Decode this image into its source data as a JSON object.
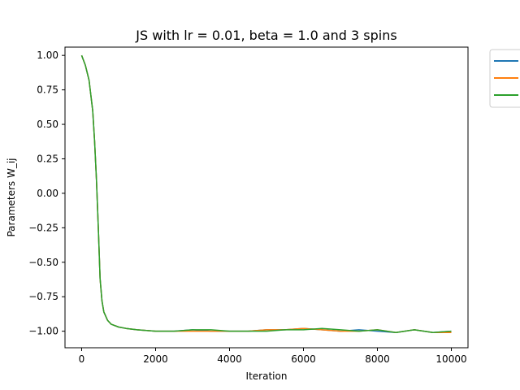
{
  "chart_data": {
    "type": "line",
    "title": "JS with lr = 0.01, beta = 1.0 and 3 spins",
    "xlabel": "Iteration",
    "ylabel": "Parameters W_ij",
    "xlim": [
      -450,
      10450
    ],
    "ylim": [
      -1.12,
      1.06
    ],
    "xticks": [
      0,
      2000,
      4000,
      6000,
      8000,
      10000
    ],
    "xtick_labels": [
      "0",
      "2000",
      "4000",
      "6000",
      "8000",
      "10000"
    ],
    "yticks": [
      1.0,
      0.75,
      0.5,
      0.25,
      0.0,
      -0.25,
      -0.5,
      -0.75,
      -1.0
    ],
    "ytick_labels": [
      "1.00",
      "0.75",
      "0.50",
      "0.25",
      "0.00",
      "−0.25",
      "−0.50",
      "−0.75",
      "−1.00"
    ],
    "grid": false,
    "legend": "outside-top-right",
    "x": [
      0,
      100,
      200,
      300,
      350,
      400,
      450,
      500,
      550,
      600,
      700,
      800,
      1000,
      1200,
      1500,
      2000,
      2500,
      3000,
      3500,
      4000,
      4500,
      5000,
      5500,
      6000,
      6500,
      7000,
      7500,
      8000,
      8500,
      9000,
      9500,
      10000
    ],
    "series": [
      {
        "color": "#1f77b4",
        "values": [
          1.0,
          0.93,
          0.82,
          0.6,
          0.38,
          0.1,
          -0.25,
          -0.62,
          -0.78,
          -0.86,
          -0.92,
          -0.95,
          -0.97,
          -0.98,
          -0.99,
          -1.0,
          -1.0,
          -0.99,
          -1.0,
          -1.0,
          -1.0,
          -0.99,
          -0.99,
          -0.98,
          -0.99,
          -1.0,
          -0.99,
          -1.0,
          -1.01,
          -0.99,
          -1.01,
          -1.0
        ]
      },
      {
        "color": "#ff7f0e",
        "values": [
          1.0,
          0.93,
          0.82,
          0.6,
          0.38,
          0.1,
          -0.25,
          -0.62,
          -0.78,
          -0.86,
          -0.92,
          -0.95,
          -0.97,
          -0.98,
          -0.99,
          -1.0,
          -1.0,
          -1.0,
          -1.0,
          -1.0,
          -1.0,
          -0.99,
          -0.99,
          -0.98,
          -0.99,
          -1.0,
          -1.0,
          -0.99,
          -1.01,
          -0.99,
          -1.01,
          -1.01
        ]
      },
      {
        "color": "#2ca02c",
        "values": [
          1.0,
          0.93,
          0.82,
          0.6,
          0.38,
          0.1,
          -0.25,
          -0.62,
          -0.78,
          -0.86,
          -0.92,
          -0.95,
          -0.97,
          -0.98,
          -0.99,
          -1.0,
          -1.0,
          -0.99,
          -0.99,
          -1.0,
          -1.0,
          -1.0,
          -0.99,
          -0.99,
          -0.98,
          -0.99,
          -1.0,
          -0.99,
          -1.01,
          -0.99,
          -1.01,
          -1.0
        ]
      }
    ]
  }
}
